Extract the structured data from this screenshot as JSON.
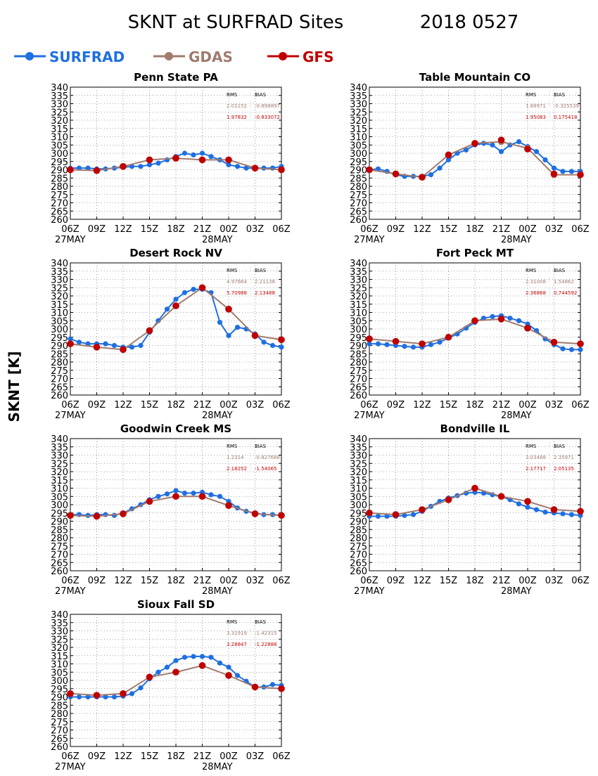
{
  "page": {
    "title": "SKNT at SURFRAD Sites",
    "date": "2018 0527",
    "ylabel": "SKNT [K]"
  },
  "legend": [
    {
      "name": "SURFRAD",
      "color": "#1f6fe0"
    },
    {
      "name": "GDAS",
      "color": "#a07b6e"
    },
    {
      "name": "GFS",
      "color": "#c00000"
    }
  ],
  "chart_data": [
    {
      "type": "line",
      "title": "Penn State PA",
      "ylim": [
        260,
        340
      ],
      "yticks": [
        260,
        265,
        270,
        275,
        280,
        285,
        290,
        295,
        300,
        305,
        310,
        315,
        320,
        325,
        330,
        335,
        340
      ],
      "xticks": [
        "06Z",
        "09Z",
        "12Z",
        "15Z",
        "18Z",
        "21Z",
        "00Z",
        "03Z",
        "06Z"
      ],
      "xdates": [
        "27MAY",
        "28MAY"
      ],
      "stats": {
        "rms_label": "RMS",
        "bias_label": "BIAS",
        "gdas": [
          "2.01152",
          "-0.898897"
        ],
        "gfs": [
          "1.97832",
          "-0.833072"
        ]
      },
      "series": [
        {
          "name": "SURFRAD",
          "x": [
            0,
            1,
            2,
            3,
            4,
            5,
            6,
            7,
            8,
            9,
            10,
            11,
            12,
            13,
            14,
            15,
            16,
            17,
            18,
            19,
            20,
            21,
            22,
            23,
            24
          ],
          "values": [
            291,
            291,
            291,
            290.5,
            290.5,
            291,
            291.5,
            292,
            292,
            293,
            294,
            296,
            298,
            300,
            299,
            300,
            298,
            296,
            293,
            292,
            291,
            291,
            291,
            291,
            292
          ]
        },
        {
          "name": "GDAS",
          "x": [
            0,
            3,
            6,
            9,
            12,
            15,
            18,
            21,
            24
          ],
          "values": [
            290,
            289.5,
            292,
            296,
            297,
            296,
            296,
            291,
            290
          ]
        },
        {
          "name": "GFS",
          "x": [
            0,
            3,
            6,
            9,
            12,
            15,
            18,
            21,
            24
          ],
          "values": [
            290,
            289.5,
            292,
            296,
            297,
            296,
            296,
            291,
            290
          ]
        }
      ]
    },
    {
      "type": "line",
      "title": "Table Mountain CO",
      "ylim": [
        260,
        340
      ],
      "yticks": [
        260,
        265,
        270,
        275,
        280,
        285,
        290,
        295,
        300,
        305,
        310,
        315,
        320,
        325,
        330,
        335,
        340
      ],
      "xticks": [
        "06Z",
        "09Z",
        "12Z",
        "15Z",
        "18Z",
        "21Z",
        "00Z",
        "03Z",
        "06Z"
      ],
      "xdates": [
        "27MAY",
        "28MAY"
      ],
      "stats": {
        "rms_label": "RMS",
        "bias_label": "BIAS",
        "gdas": [
          "1.88971",
          "-0.325539"
        ],
        "gfs": [
          "1.95083",
          "0.175418"
        ]
      },
      "series": [
        {
          "name": "SURFRAD",
          "x": [
            0,
            1,
            2,
            3,
            4,
            5,
            6,
            7,
            8,
            9,
            10,
            11,
            12,
            13,
            14,
            15,
            16,
            17,
            18,
            19,
            20,
            21,
            22,
            23,
            24
          ],
          "values": [
            290,
            290.5,
            289,
            287,
            286,
            286,
            286,
            287,
            291,
            296,
            300,
            302,
            305,
            306,
            305,
            301,
            305,
            307,
            304,
            301,
            296,
            291,
            289,
            289,
            289
          ]
        },
        {
          "name": "GDAS",
          "x": [
            0,
            3,
            6,
            9,
            12,
            15,
            18,
            21,
            24
          ],
          "values": [
            290,
            287.5,
            285.5,
            299,
            306,
            307,
            303,
            287,
            287
          ]
        },
        {
          "name": "GFS",
          "x": [
            0,
            3,
            6,
            9,
            12,
            15,
            18,
            21,
            24
          ],
          "values": [
            290,
            287.5,
            285.5,
            299,
            306,
            308,
            302.5,
            287.5,
            287
          ]
        }
      ]
    },
    {
      "type": "line",
      "title": "Desert Rock NV",
      "ylim": [
        260,
        340
      ],
      "yticks": [
        260,
        265,
        270,
        275,
        280,
        285,
        290,
        295,
        300,
        305,
        310,
        315,
        320,
        325,
        330,
        335,
        340
      ],
      "xticks": [
        "06Z",
        "09Z",
        "12Z",
        "15Z",
        "18Z",
        "21Z",
        "00Z",
        "03Z",
        "06Z"
      ],
      "xdates": [
        "27MAY",
        "28MAY"
      ],
      "stats": {
        "rms_label": "RMS",
        "bias_label": "BIAS",
        "gdas": [
          "4.97664",
          "2.21138"
        ],
        "gfs": [
          "5.70988",
          "2.13488"
        ]
      },
      "series": [
        {
          "name": "SURFRAD",
          "x": [
            0,
            1,
            2,
            3,
            4,
            5,
            6,
            7,
            8,
            9,
            10,
            11,
            12,
            13,
            14,
            15,
            16,
            17,
            18,
            19,
            20,
            21,
            22,
            23,
            24
          ],
          "values": [
            294,
            292,
            291,
            291,
            291,
            290,
            289,
            289,
            290,
            298,
            305,
            312,
            318,
            322,
            324,
            324,
            322,
            304,
            296,
            301,
            300,
            297,
            292,
            290,
            289
          ]
        },
        {
          "name": "GDAS",
          "x": [
            0,
            3,
            6,
            9,
            12,
            15,
            18,
            21,
            24
          ],
          "values": [
            291,
            289,
            287.5,
            299,
            314,
            325,
            312,
            296,
            293.5
          ]
        },
        {
          "name": "GFS",
          "x": [
            0,
            3,
            6,
            9,
            12,
            15,
            18,
            21,
            24
          ],
          "values": [
            291,
            289,
            287.5,
            299,
            314,
            325,
            312,
            296,
            293.5
          ]
        }
      ]
    },
    {
      "type": "line",
      "title": "Fort Peck MT",
      "ylim": [
        260,
        340
      ],
      "yticks": [
        260,
        265,
        270,
        275,
        280,
        285,
        290,
        295,
        300,
        305,
        310,
        315,
        320,
        325,
        330,
        335,
        340
      ],
      "xticks": [
        "06Z",
        "09Z",
        "12Z",
        "15Z",
        "18Z",
        "21Z",
        "00Z",
        "03Z",
        "06Z"
      ],
      "xdates": [
        "27MAY",
        "28MAY"
      ],
      "stats": {
        "rms_label": "RMS",
        "bias_label": "BIAS",
        "gdas": [
          "2.31008",
          "1.54862"
        ],
        "gfs": [
          "2.36868",
          "0.744592"
        ]
      },
      "series": [
        {
          "name": "SURFRAD",
          "x": [
            0,
            1,
            2,
            3,
            4,
            5,
            6,
            7,
            8,
            9,
            10,
            11,
            12,
            13,
            14,
            15,
            16,
            17,
            18,
            19,
            20,
            21,
            22,
            23,
            24
          ],
          "values": [
            291,
            291,
            290.5,
            290,
            289.5,
            289,
            289,
            290.5,
            292,
            294.5,
            297,
            300.5,
            304,
            306.5,
            307.5,
            308,
            306.5,
            305,
            303,
            299,
            294,
            290.5,
            288,
            287.5,
            287.5
          ]
        },
        {
          "name": "GDAS",
          "x": [
            0,
            3,
            6,
            9,
            12,
            15,
            18,
            21,
            24
          ],
          "values": [
            294,
            292.5,
            291,
            295,
            305,
            306,
            300.5,
            292,
            291
          ]
        },
        {
          "name": "GFS",
          "x": [
            0,
            3,
            6,
            9,
            12,
            15,
            18,
            21,
            24
          ],
          "values": [
            294,
            292.5,
            291,
            295,
            305,
            306,
            300.5,
            292,
            291
          ]
        }
      ]
    },
    {
      "type": "line",
      "title": "Goodwin Creek MS",
      "ylim": [
        260,
        340
      ],
      "yticks": [
        260,
        265,
        270,
        275,
        280,
        285,
        290,
        295,
        300,
        305,
        310,
        315,
        320,
        325,
        330,
        335,
        340
      ],
      "xticks": [
        "06Z",
        "09Z",
        "12Z",
        "15Z",
        "18Z",
        "21Z",
        "00Z",
        "03Z",
        "06Z"
      ],
      "xdates": [
        "27MAY",
        "28MAY"
      ],
      "stats": {
        "rms_label": "RMS",
        "bias_label": "BIAS",
        "gdas": [
          "1.2314",
          "-0.827688"
        ],
        "gfs": [
          "2.18252",
          "-1.54065"
        ]
      },
      "series": [
        {
          "name": "SURFRAD",
          "x": [
            0,
            1,
            2,
            3,
            4,
            5,
            6,
            7,
            8,
            9,
            10,
            11,
            12,
            13,
            14,
            15,
            16,
            17,
            18,
            19,
            20,
            21,
            22,
            23,
            24
          ],
          "values": [
            294,
            294,
            293.5,
            294,
            294,
            293.5,
            295,
            297.5,
            300,
            303,
            305,
            306.5,
            308.5,
            307,
            307,
            307.5,
            306,
            305,
            302,
            298,
            296,
            295,
            294,
            294,
            293.5
          ]
        },
        {
          "name": "GDAS",
          "x": [
            0,
            3,
            6,
            9,
            12,
            15,
            18,
            21,
            24
          ],
          "values": [
            293.5,
            293,
            294.5,
            302,
            305,
            305,
            299.5,
            294.5,
            293.5
          ]
        },
        {
          "name": "GFS",
          "x": [
            0,
            3,
            6,
            9,
            12,
            15,
            18,
            21,
            24
          ],
          "values": [
            293.5,
            293,
            294.5,
            302,
            305,
            305,
            299.5,
            294.5,
            293.5
          ]
        }
      ]
    },
    {
      "type": "line",
      "title": "Bondville IL",
      "ylim": [
        260,
        340
      ],
      "yticks": [
        260,
        265,
        270,
        275,
        280,
        285,
        290,
        295,
        300,
        305,
        310,
        315,
        320,
        325,
        330,
        335,
        340
      ],
      "xticks": [
        "06Z",
        "09Z",
        "12Z",
        "15Z",
        "18Z",
        "21Z",
        "00Z",
        "03Z",
        "06Z"
      ],
      "xdates": [
        "27MAY",
        "28MAY"
      ],
      "stats": {
        "rms_label": "RMS",
        "bias_label": "BIAS",
        "gdas": [
          "3.03488",
          "2.35971"
        ],
        "gfs": [
          "2.17717",
          "2.05135"
        ]
      },
      "series": [
        {
          "name": "SURFRAD",
          "x": [
            0,
            1,
            2,
            3,
            4,
            5,
            6,
            7,
            8,
            9,
            10,
            11,
            12,
            13,
            14,
            15,
            16,
            17,
            18,
            19,
            20,
            21,
            22,
            23,
            24
          ],
          "values": [
            293,
            293,
            293,
            293,
            293.5,
            294,
            296,
            299,
            302,
            304,
            305.5,
            307,
            307.5,
            307,
            306,
            305,
            303,
            300.5,
            298.5,
            297,
            295.5,
            295,
            294.5,
            294,
            293.5
          ]
        },
        {
          "name": "GDAS",
          "x": [
            0,
            3,
            6,
            9,
            12,
            15,
            18,
            21,
            24
          ],
          "values": [
            295,
            294,
            297,
            303,
            310,
            305,
            302,
            297,
            296
          ]
        },
        {
          "name": "GFS",
          "x": [
            0,
            3,
            6,
            9,
            12,
            15,
            18,
            21,
            24
          ],
          "values": [
            295,
            294,
            297,
            303,
            310,
            305,
            302,
            297,
            296
          ]
        }
      ]
    },
    {
      "type": "line",
      "title": "Sioux Fall SD",
      "ylim": [
        260,
        340
      ],
      "yticks": [
        260,
        265,
        270,
        275,
        280,
        285,
        290,
        295,
        300,
        305,
        310,
        315,
        320,
        325,
        330,
        335,
        340
      ],
      "xticks": [
        "06Z",
        "09Z",
        "12Z",
        "15Z",
        "18Z",
        "21Z",
        "00Z",
        "03Z",
        "06Z"
      ],
      "xdates": [
        "27MAY",
        "28MAY"
      ],
      "stats": {
        "rms_label": "RMS",
        "bias_label": "BIAS",
        "gdas": [
          "3.31919",
          "-1.42315"
        ],
        "gfs": [
          "3.28847",
          "-1.22888"
        ]
      },
      "series": [
        {
          "name": "SURFRAD",
          "x": [
            0,
            1,
            2,
            3,
            4,
            5,
            6,
            7,
            8,
            9,
            10,
            11,
            12,
            13,
            14,
            15,
            16,
            17,
            18,
            19,
            20,
            21,
            22,
            23,
            24
          ],
          "values": [
            290,
            290,
            290,
            290,
            290,
            290,
            290.5,
            292,
            295.5,
            301,
            305,
            308,
            312,
            314,
            314.5,
            314.5,
            314,
            310.5,
            308,
            303,
            299.5,
            296,
            296,
            297.5,
            297
          ]
        },
        {
          "name": "GDAS",
          "x": [
            0,
            3,
            6,
            9,
            12,
            15,
            18,
            21,
            24
          ],
          "values": [
            292,
            291,
            292,
            302,
            305,
            309,
            303,
            296,
            295
          ]
        },
        {
          "name": "GFS",
          "x": [
            0,
            3,
            6,
            9,
            12,
            15,
            18,
            21,
            24
          ],
          "values": [
            292,
            291,
            292,
            302,
            305,
            309,
            303,
            296,
            295
          ]
        }
      ]
    }
  ]
}
